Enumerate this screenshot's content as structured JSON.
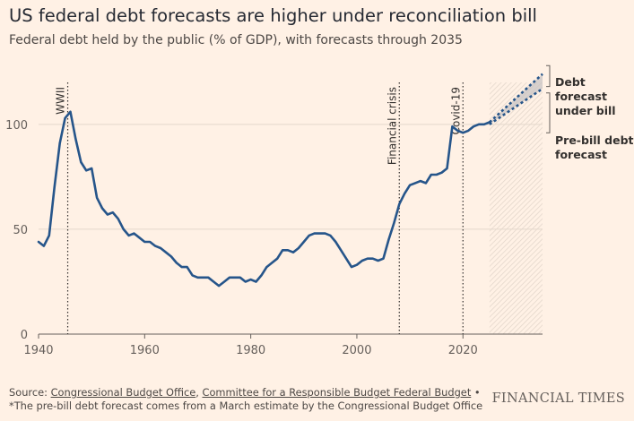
{
  "title": "US federal debt forecasts are higher under reconciliation bill",
  "subtitle": "Federal debt held by the public (% of GDP), with forecasts through 2035",
  "footer": {
    "source_prefix": "Source: ",
    "source_1": "Congressional Budget Office",
    "separator": ", ",
    "source_2": "Committee for a Responsible Budget Federal Budget",
    "note": " • *The pre-bill debt forecast comes from a March estimate by the Congressional Budget Office"
  },
  "brand": "FINANCIAL TIMES",
  "colors": {
    "background": "#fff1e5",
    "line": "#26558a",
    "gridline": "#e4d8cc",
    "band": "#c9c4c4",
    "text": "#33302e"
  },
  "chart_data": {
    "type": "line",
    "xlim": [
      1940,
      2035
    ],
    "ylim": [
      0,
      120
    ],
    "x_ticks": [
      1940,
      1960,
      1980,
      2000,
      2020
    ],
    "y_ticks": [
      0,
      50,
      100
    ],
    "annotations": [
      {
        "x": 1945.5,
        "label": "WWII"
      },
      {
        "x": 2008,
        "label": "Financial crisis"
      },
      {
        "x": 2020,
        "label": "Covid-19"
      }
    ],
    "forecast_period": [
      2025,
      2035
    ],
    "series": [
      {
        "type": "historical",
        "x": [
          1940,
          1941,
          1942,
          1943,
          1944,
          1945,
          1946,
          1947,
          1948,
          1949,
          1950,
          1951,
          1952,
          1953,
          1954,
          1955,
          1956,
          1957,
          1958,
          1959,
          1960,
          1961,
          1962,
          1963,
          1964,
          1965,
          1966,
          1967,
          1968,
          1969,
          1970,
          1971,
          1972,
          1973,
          1974,
          1975,
          1976,
          1977,
          1978,
          1979,
          1980,
          1981,
          1982,
          1983,
          1984,
          1985,
          1986,
          1987,
          1988,
          1989,
          1990,
          1991,
          1992,
          1993,
          1994,
          1995,
          1996,
          1997,
          1998,
          1999,
          2000,
          2001,
          2002,
          2003,
          2004,
          2005,
          2006,
          2007,
          2008,
          2009,
          2010,
          2011,
          2012,
          2013,
          2014,
          2015,
          2016,
          2017,
          2018,
          2019,
          2020,
          2021,
          2022,
          2023,
          2024,
          2025
        ],
        "values": [
          44,
          42,
          47,
          70,
          91,
          103,
          106,
          93,
          82,
          78,
          79,
          65,
          60,
          57,
          58,
          55,
          50,
          47,
          48,
          46,
          44,
          44,
          42,
          41,
          39,
          37,
          34,
          32,
          32,
          28,
          27,
          27,
          27,
          25,
          23,
          25,
          27,
          27,
          27,
          25,
          26,
          25,
          28,
          32,
          34,
          36,
          40,
          40,
          39,
          41,
          44,
          47,
          48,
          48,
          48,
          47,
          44,
          40,
          36,
          32,
          33,
          35,
          36,
          36,
          35,
          36,
          45,
          53,
          62,
          67,
          71,
          72,
          73,
          72,
          76,
          76,
          77,
          79,
          99,
          97,
          96,
          97,
          99,
          100,
          100,
          101
        ]
      },
      {
        "name": "Debt forecast under bill",
        "type": "forecast",
        "x": [
          2025,
          2035
        ],
        "values": [
          101,
          124
        ]
      },
      {
        "name": "Pre-bill debt forecast",
        "type": "forecast",
        "x": [
          2025,
          2035
        ],
        "values": [
          100,
          117
        ]
      }
    ],
    "legend": [
      {
        "label": "Debt forecast under bill"
      },
      {
        "label": "Pre-bill debt forecast"
      }
    ]
  }
}
